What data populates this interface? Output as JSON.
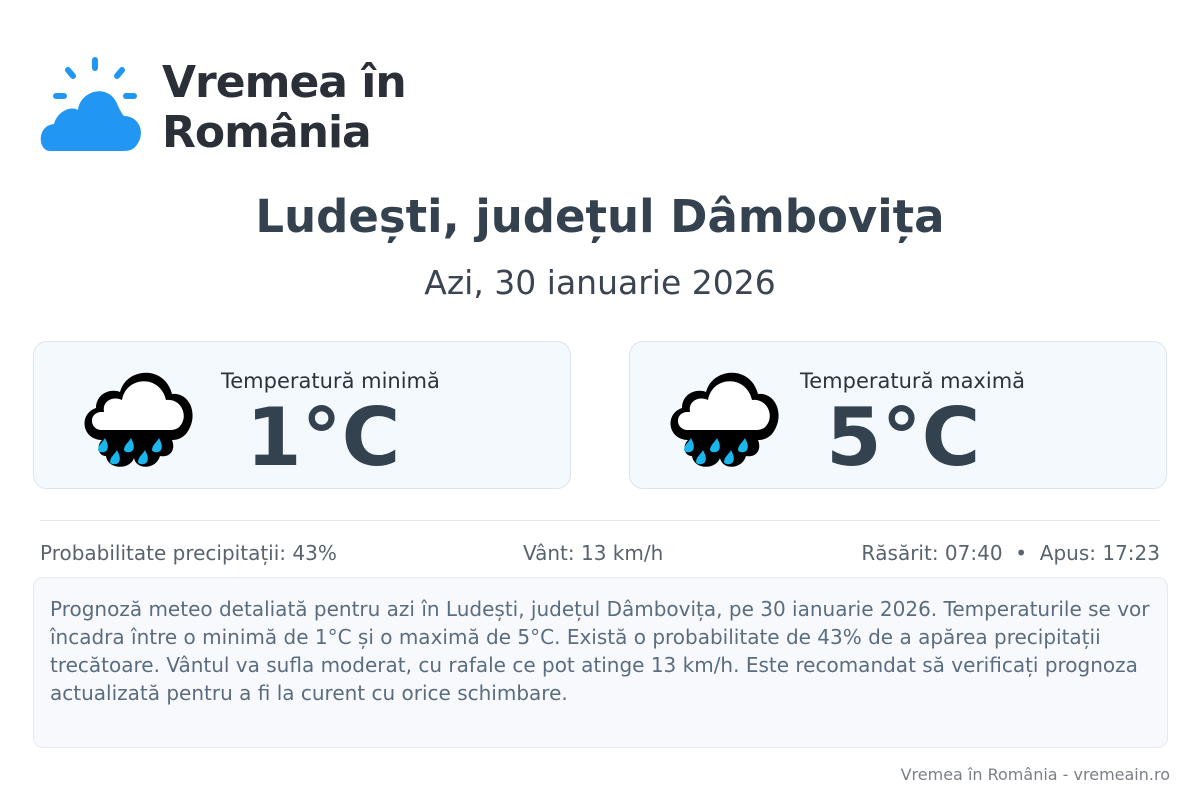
{
  "brand": {
    "line1": "Vremea în",
    "line2": "România",
    "icon": "sun-cloud-logo",
    "color": "#2196f3"
  },
  "header": {
    "title": "Ludești, județul Dâmbovița",
    "date": "Azi, 30 ianuarie 2026"
  },
  "cards": [
    {
      "label": "Temperatură minimă",
      "value": "1°C",
      "icon": "rain-cloud-icon"
    },
    {
      "label": "Temperatură maximă",
      "value": "5°C",
      "icon": "rain-cloud-icon"
    }
  ],
  "stats": {
    "precip": "Probabilitate precipitații: 43%",
    "wind": "Vânt: 13 km/h",
    "sun": "Răsărit: 07:40  •  Apus: 17:23"
  },
  "description": "Prognoză meteo detaliată pentru azi în Ludești, județul Dâmbovița, pe 30 ianuarie 2026. Temperaturile se vor încadra între o minimă de 1°C și o maximă de 5°C. Există o probabilitate de 43% de a apărea precipitații trecătoare. Vântul va sufla moderat, cu rafale ce pot atinge 13 km/h. Este recomandat să verificați prognoza actualizată pentru a fi la curent cu orice schimbare.",
  "footer": "Vremea în România - vremeain.ro",
  "colors": {
    "drop": "#1ab6ee",
    "text": "#34424f"
  }
}
